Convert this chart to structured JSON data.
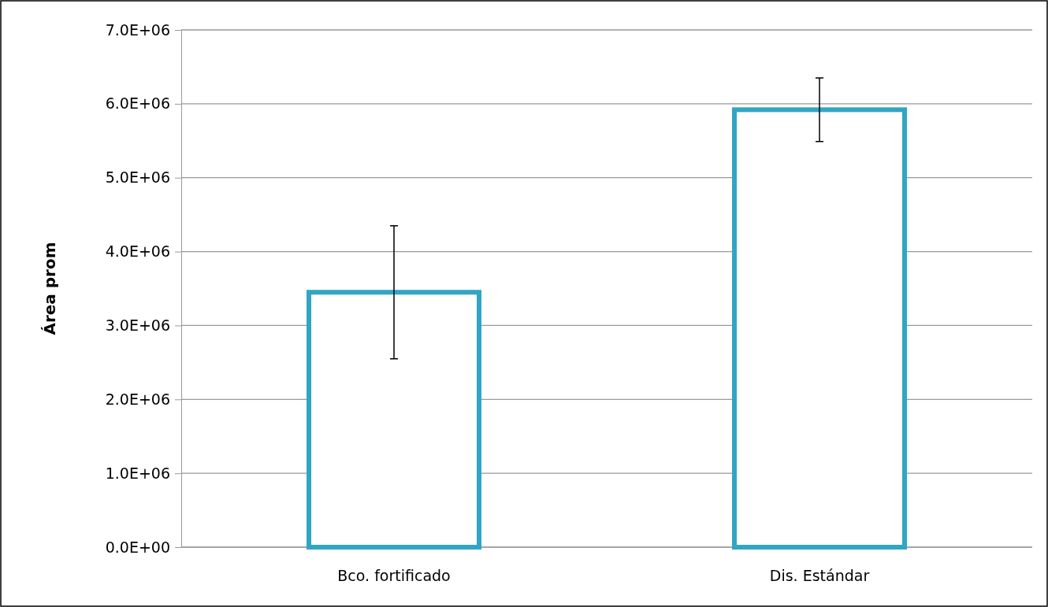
{
  "chart_data": {
    "type": "bar",
    "ylabel": "Área prom",
    "categories": [
      "Bco. fortificado",
      "Dis. Estándar"
    ],
    "values": [
      3450000,
      5920000
    ],
    "errors": [
      900000,
      430000
    ],
    "color": "#31a5c4",
    "ylim": [
      0,
      7000000
    ],
    "yticks": [
      {
        "value": 0,
        "label": "0.0E+00"
      },
      {
        "value": 1000000,
        "label": "1.0E+06"
      },
      {
        "value": 2000000,
        "label": "2.0E+06"
      },
      {
        "value": 3000000,
        "label": "3.0E+06"
      },
      {
        "value": 4000000,
        "label": "4.0E+06"
      },
      {
        "value": 5000000,
        "label": "5.0E+06"
      },
      {
        "value": 6000000,
        "label": "6.0E+06"
      },
      {
        "value": 7000000,
        "label": "7.0E+06"
      }
    ],
    "grid": "y"
  }
}
